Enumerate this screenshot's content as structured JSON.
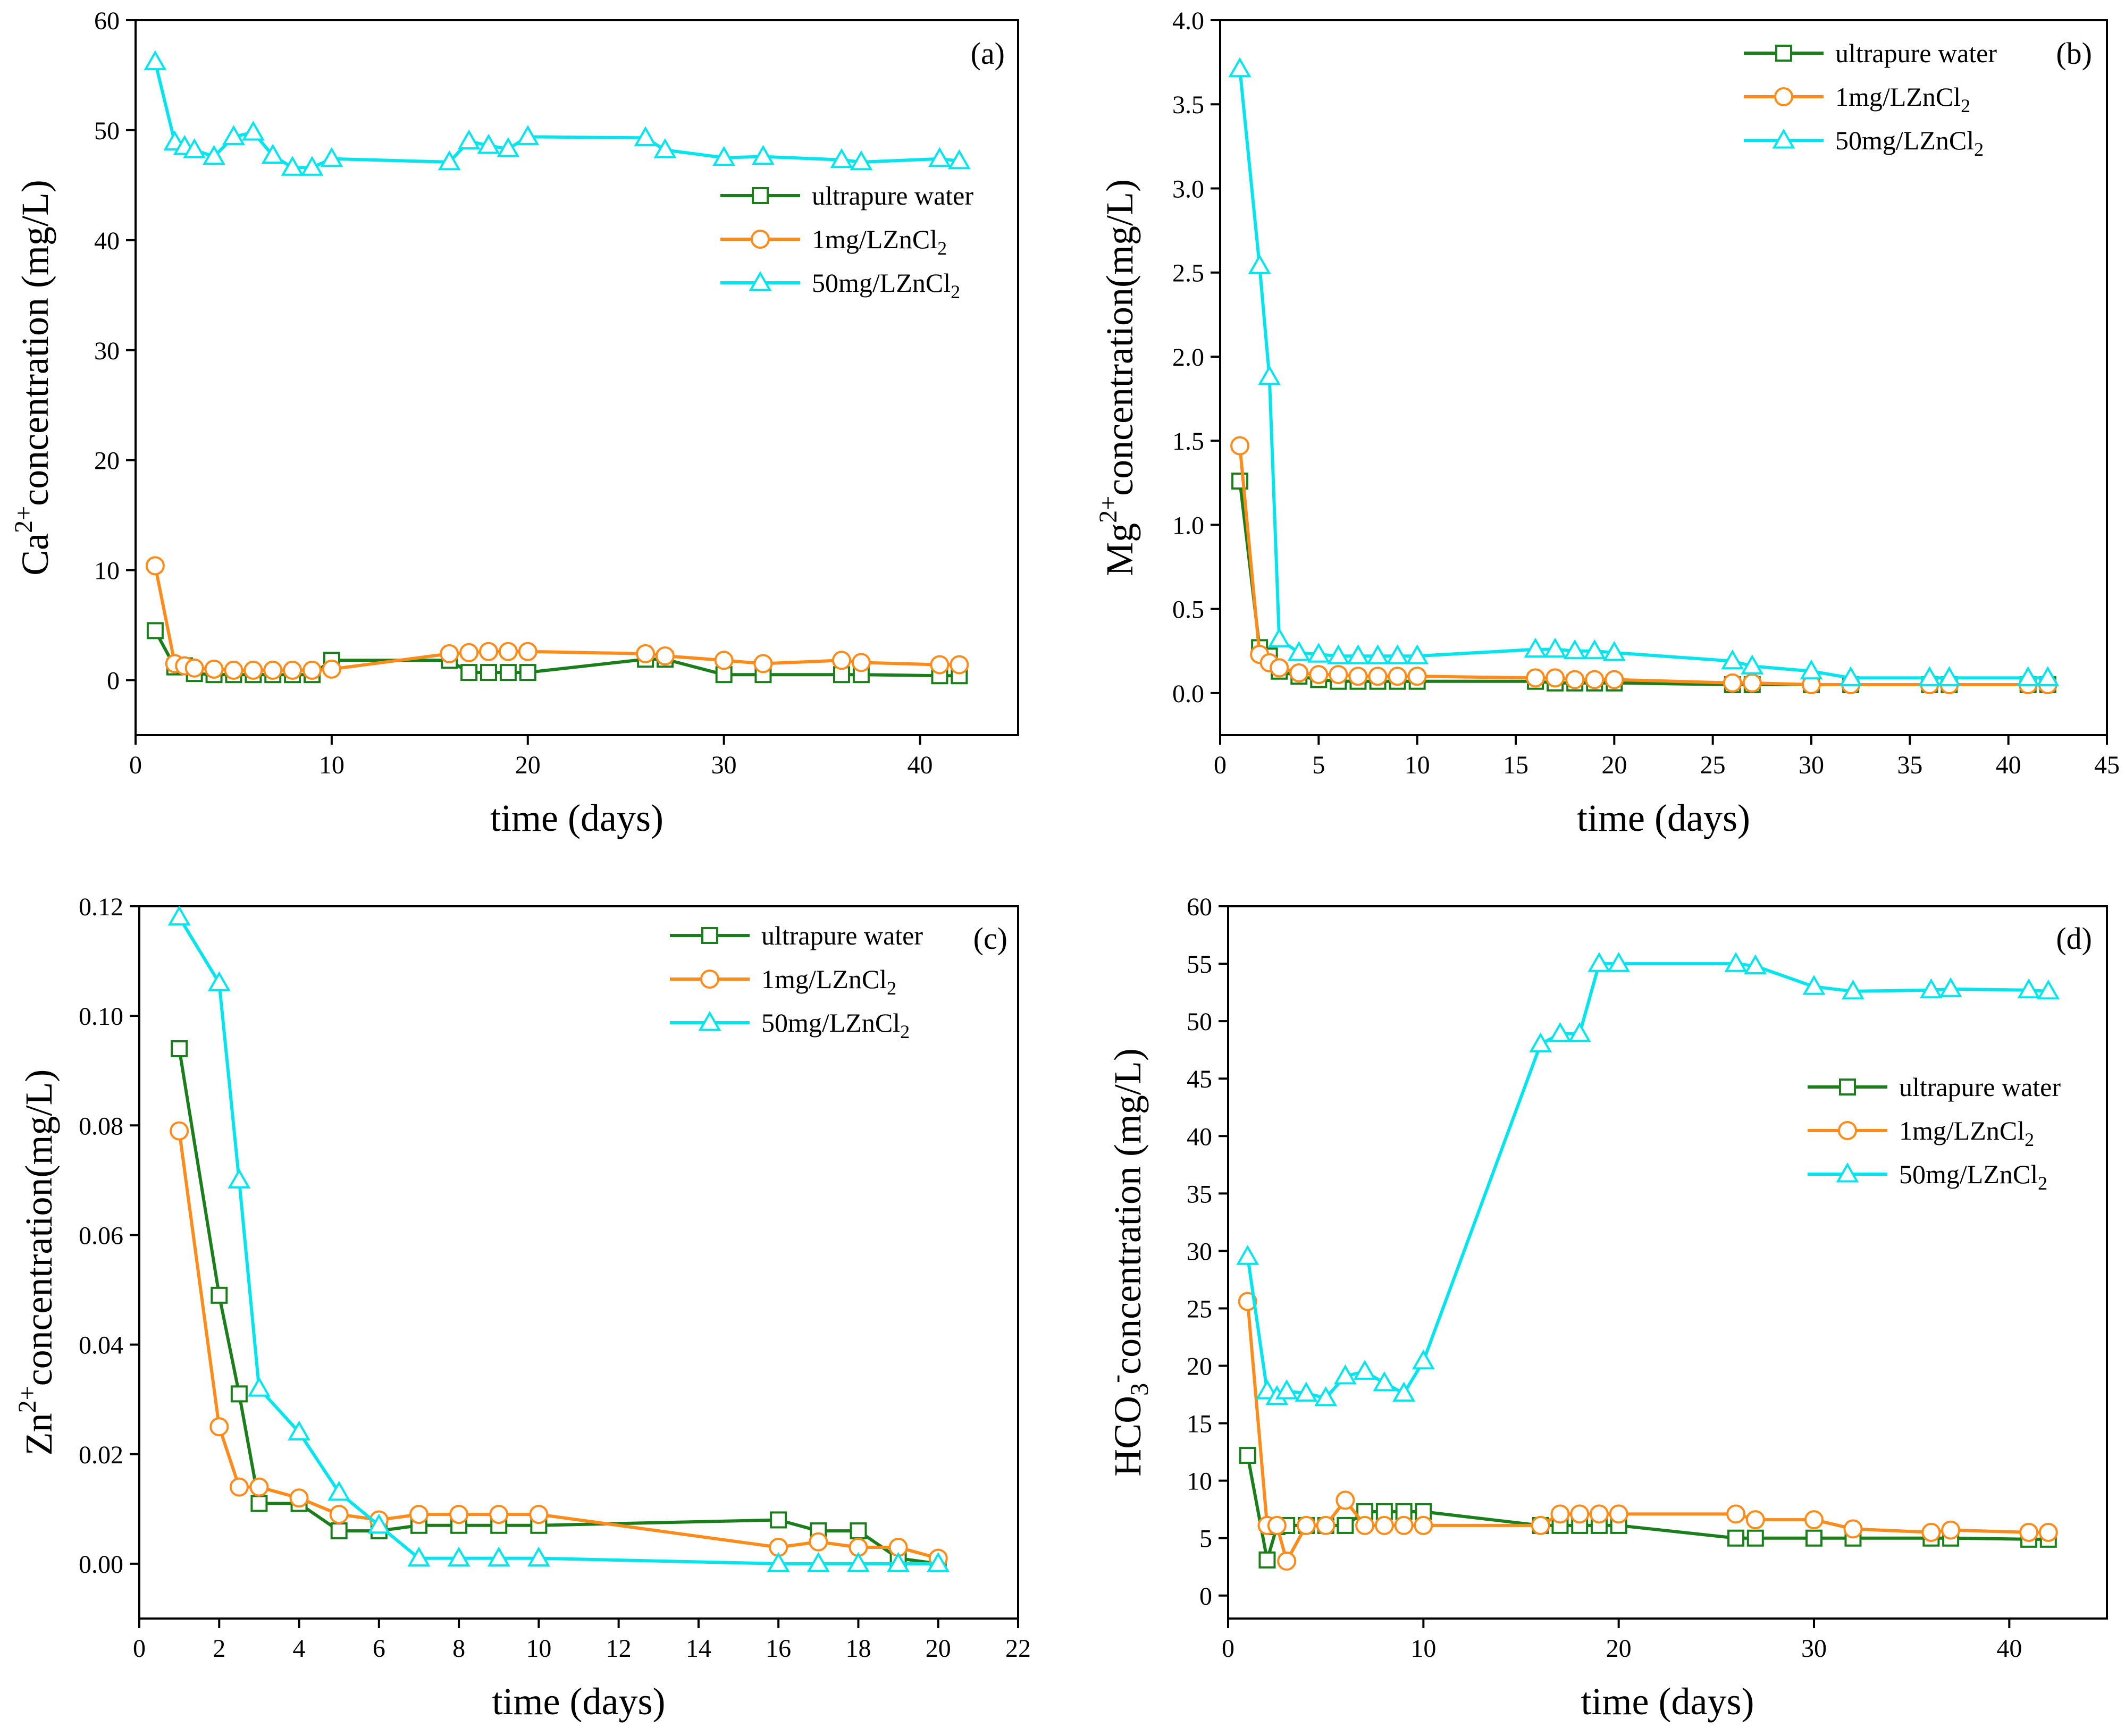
{
  "colors": {
    "ultrapure": "#1a7f1a",
    "zn1": "#ff8c1a",
    "zn50": "#00e5ee"
  },
  "icons": {
    "ultrapure": "square-marker-icon",
    "zn1": "circle-marker-icon",
    "zn50": "triangle-marker-icon"
  },
  "chart_data": [
    {
      "id": "a",
      "type": "line",
      "panel_label": "(a)",
      "xlabel": "time (days)",
      "ylabel": {
        "base": "Ca",
        "sup": "2+",
        "rest": "concentration (mg/L)"
      },
      "xlim": [
        0,
        45
      ],
      "ylim": [
        -5,
        60
      ],
      "xticks": [
        0,
        10,
        20,
        30,
        40
      ],
      "yticks": [
        0,
        10,
        20,
        30,
        40,
        50,
        60
      ],
      "legend_position": "right-upper",
      "legend": [
        {
          "key": "ultrapure",
          "label": "ultrapure water"
        },
        {
          "key": "zn1",
          "label": "1mg/LZnCl",
          "sub": "2"
        },
        {
          "key": "zn50",
          "label": "50mg/LZnCl",
          "sub": "2"
        }
      ],
      "series": [
        {
          "key": "ultrapure",
          "name": "ultrapure water",
          "x": [
            1,
            2,
            2.5,
            3,
            4,
            5,
            6,
            7,
            8,
            9,
            10,
            16,
            17,
            18,
            19,
            20,
            26,
            27,
            30,
            32,
            36,
            37,
            41,
            42
          ],
          "y": [
            4.5,
            1.2,
            1.3,
            0.6,
            0.5,
            0.5,
            0.5,
            0.5,
            0.5,
            0.5,
            1.8,
            1.8,
            0.7,
            0.7,
            0.7,
            0.7,
            1.9,
            1.9,
            0.5,
            0.5,
            0.5,
            0.5,
            0.4,
            0.4
          ]
        },
        {
          "key": "zn1",
          "name": "1mg/LZnCl2",
          "x": [
            1,
            2,
            2.5,
            3,
            4,
            5,
            6,
            7,
            8,
            9,
            10,
            16,
            17,
            18,
            19,
            20,
            26,
            27,
            30,
            32,
            36,
            37,
            41,
            42
          ],
          "y": [
            10.4,
            1.5,
            1.3,
            1.1,
            1.0,
            0.9,
            0.9,
            0.9,
            0.9,
            0.9,
            1.0,
            2.4,
            2.5,
            2.6,
            2.6,
            2.6,
            2.4,
            2.2,
            1.8,
            1.5,
            1.8,
            1.6,
            1.4,
            1.4
          ]
        },
        {
          "key": "zn50",
          "name": "50mg/LZnCl2",
          "x": [
            1,
            2,
            2.5,
            3,
            4,
            5,
            6,
            7,
            8,
            9,
            10,
            16,
            17,
            18,
            19,
            20,
            26,
            27,
            30,
            32,
            36,
            37,
            41,
            42
          ],
          "y": [
            56.2,
            48.9,
            48.5,
            48.2,
            47.6,
            49.4,
            49.8,
            47.7,
            46.6,
            46.6,
            47.4,
            47.1,
            49.0,
            48.6,
            48.3,
            49.4,
            49.3,
            48.2,
            47.5,
            47.6,
            47.3,
            47.1,
            47.4,
            47.2
          ]
        }
      ]
    },
    {
      "id": "b",
      "type": "line",
      "panel_label": "(b)",
      "xlabel": "time (days)",
      "ylabel": {
        "base": "Mg",
        "sup": "2+",
        "rest": "concentration(mg/L)"
      },
      "xlim": [
        0,
        45
      ],
      "ylim": [
        -0.25,
        4.0
      ],
      "xticks": [
        0,
        5,
        10,
        15,
        20,
        25,
        30,
        35,
        40,
        45
      ],
      "yticks": [
        0.0,
        0.5,
        1.0,
        1.5,
        2.0,
        2.5,
        3.0,
        3.5,
        4.0
      ],
      "ytick_decimals": 1,
      "legend_position": "top-right",
      "legend": [
        {
          "key": "ultrapure",
          "label": "ultrapure water"
        },
        {
          "key": "zn1",
          "label": "1mg/LZnCl",
          "sub": "2"
        },
        {
          "key": "zn50",
          "label": "50mg/LZnCl",
          "sub": "2"
        }
      ],
      "series": [
        {
          "key": "ultrapure",
          "name": "ultrapure water",
          "x": [
            1,
            2,
            2.5,
            3,
            4,
            5,
            6,
            7,
            8,
            9,
            10,
            16,
            17,
            18,
            19,
            20,
            26,
            27,
            30,
            32,
            36,
            37,
            41,
            42
          ],
          "y": [
            1.26,
            0.27,
            0.22,
            0.13,
            0.1,
            0.08,
            0.07,
            0.07,
            0.07,
            0.07,
            0.07,
            0.07,
            0.06,
            0.06,
            0.06,
            0.06,
            0.05,
            0.05,
            0.05,
            0.05,
            0.05,
            0.05,
            0.05,
            0.05
          ]
        },
        {
          "key": "zn1",
          "name": "1mg/LZnCl2",
          "x": [
            1,
            2,
            2.5,
            3,
            4,
            5,
            6,
            7,
            8,
            9,
            10,
            16,
            17,
            18,
            19,
            20,
            26,
            27,
            30,
            32,
            36,
            37,
            41,
            42
          ],
          "y": [
            1.47,
            0.23,
            0.18,
            0.15,
            0.12,
            0.11,
            0.11,
            0.1,
            0.1,
            0.1,
            0.1,
            0.09,
            0.09,
            0.08,
            0.08,
            0.08,
            0.06,
            0.06,
            0.05,
            0.05,
            0.05,
            0.05,
            0.05,
            0.05
          ]
        },
        {
          "key": "zn50",
          "name": "50mg/LZnCl2",
          "x": [
            1,
            2,
            2.5,
            3,
            4,
            5,
            6,
            7,
            8,
            9,
            10,
            16,
            17,
            18,
            19,
            20,
            26,
            27,
            30,
            32,
            36,
            37,
            41,
            42
          ],
          "y": [
            3.71,
            2.54,
            1.88,
            0.32,
            0.24,
            0.23,
            0.22,
            0.22,
            0.22,
            0.22,
            0.22,
            0.26,
            0.26,
            0.25,
            0.25,
            0.24,
            0.19,
            0.16,
            0.13,
            0.09,
            0.09,
            0.09,
            0.09,
            0.09
          ]
        }
      ]
    },
    {
      "id": "c",
      "type": "line",
      "panel_label": "(c)",
      "xlabel": "time (days)",
      "ylabel": {
        "base": "Zn",
        "sup": "2+",
        "rest": "concentration(mg/L)"
      },
      "xlim": [
        0,
        22
      ],
      "ylim": [
        -0.01,
        0.12
      ],
      "xticks": [
        0,
        2,
        4,
        6,
        8,
        10,
        12,
        14,
        16,
        18,
        20,
        22
      ],
      "yticks": [
        0.0,
        0.02,
        0.04,
        0.06,
        0.08,
        0.1,
        0.12
      ],
      "ytick_decimals": 2,
      "legend_position": "top-right",
      "legend": [
        {
          "key": "ultrapure",
          "label": "ultrapure water"
        },
        {
          "key": "zn1",
          "label": "1mg/LZnCl",
          "sub": "2"
        },
        {
          "key": "zn50",
          "label": "50mg/LZnCl",
          "sub": "2"
        }
      ],
      "series": [
        {
          "key": "ultrapure",
          "name": "ultrapure water",
          "x": [
            1,
            2,
            2.5,
            3,
            4,
            5,
            6,
            7,
            8,
            9,
            10,
            16,
            17,
            18,
            19,
            20
          ],
          "y": [
            0.094,
            0.049,
            0.031,
            0.011,
            0.011,
            0.006,
            0.006,
            0.007,
            0.007,
            0.007,
            0.007,
            0.008,
            0.006,
            0.006,
            0.001,
            0.0
          ]
        },
        {
          "key": "zn1",
          "name": "1mg/LZnCl2",
          "x": [
            1,
            2,
            2.5,
            3,
            4,
            5,
            6,
            7,
            8,
            9,
            10,
            16,
            17,
            18,
            19,
            20
          ],
          "y": [
            0.079,
            0.025,
            0.014,
            0.014,
            0.012,
            0.009,
            0.008,
            0.009,
            0.009,
            0.009,
            0.009,
            0.003,
            0.004,
            0.003,
            0.003,
            0.001
          ]
        },
        {
          "key": "zn50",
          "name": "50mg/LZnCl2",
          "x": [
            1,
            2,
            2.5,
            3,
            4,
            5,
            6,
            7,
            8,
            9,
            10,
            16,
            17,
            18,
            19,
            20
          ],
          "y": [
            0.118,
            0.106,
            0.07,
            0.032,
            0.024,
            0.013,
            0.007,
            0.001,
            0.001,
            0.001,
            0.001,
            0.0,
            0.0,
            0.0,
            0.0,
            0.0
          ]
        }
      ]
    },
    {
      "id": "d",
      "type": "line",
      "panel_label": "(d)",
      "xlabel": "time (days)",
      "ylabel": {
        "base": "HCO",
        "sub": "3",
        "sup": "-",
        "rest": "concentration (mg/L)"
      },
      "xlim": [
        0,
        45
      ],
      "ylim": [
        -2,
        60
      ],
      "xticks": [
        0,
        10,
        20,
        30,
        40
      ],
      "yticks": [
        0,
        5,
        10,
        15,
        20,
        25,
        30,
        35,
        40,
        45,
        50,
        55,
        60
      ],
      "legend_position": "right-middle",
      "legend": [
        {
          "key": "ultrapure",
          "label": "ultrapure water"
        },
        {
          "key": "zn1",
          "label": "1mg/LZnCl",
          "sub": "2"
        },
        {
          "key": "zn50",
          "label": "50mg/LZnCl",
          "sub": "2"
        }
      ],
      "series": [
        {
          "key": "ultrapure",
          "name": "ultrapure water",
          "x": [
            1,
            2,
            2.5,
            3,
            4,
            5,
            6,
            7,
            8,
            9,
            10,
            16,
            17,
            18,
            19,
            20,
            26,
            27,
            30,
            32,
            36,
            37,
            41,
            42
          ],
          "y": [
            12.2,
            3.1,
            6.0,
            6.1,
            6.1,
            6.1,
            6.1,
            7.3,
            7.3,
            7.3,
            7.3,
            6.1,
            6.1,
            6.1,
            6.1,
            6.1,
            5.0,
            5.0,
            5.0,
            5.0,
            5.0,
            5.0,
            4.9,
            4.9
          ]
        },
        {
          "key": "zn1",
          "name": "1mg/LZnCl2",
          "x": [
            1,
            2,
            2.5,
            3,
            4,
            5,
            6,
            7,
            8,
            9,
            10,
            16,
            17,
            18,
            19,
            20,
            26,
            27,
            30,
            32,
            36,
            37,
            41,
            42
          ],
          "y": [
            25.6,
            6.1,
            6.1,
            3.0,
            6.1,
            6.1,
            8.3,
            6.1,
            6.1,
            6.1,
            6.1,
            6.1,
            7.1,
            7.1,
            7.1,
            7.1,
            7.1,
            6.6,
            6.6,
            5.8,
            5.5,
            5.7,
            5.5,
            5.5
          ]
        },
        {
          "key": "zn50",
          "name": "50mg/LZnCl2",
          "x": [
            1,
            2,
            2.5,
            3,
            4,
            5,
            6,
            7,
            8,
            9,
            10,
            16,
            17,
            18,
            19,
            20,
            26,
            27,
            30,
            32,
            36,
            37,
            41,
            42
          ],
          "y": [
            29.5,
            17.8,
            17.3,
            17.8,
            17.6,
            17.2,
            19.1,
            19.5,
            18.5,
            17.6,
            20.4,
            48.0,
            48.9,
            48.9,
            55.0,
            55.0,
            55.0,
            54.8,
            53.0,
            52.6,
            52.7,
            52.8,
            52.7,
            52.6
          ]
        }
      ]
    }
  ]
}
